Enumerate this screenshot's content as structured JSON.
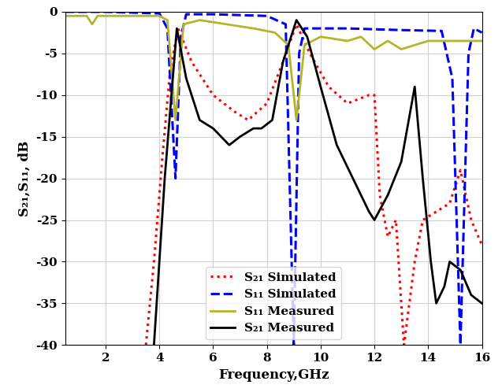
{
  "chart_data": {
    "type": "line",
    "x_label": "Frequency,GHz",
    "y_label": "S₂₁,S₁₁, dB",
    "xlim": [
      0.5,
      16
    ],
    "xticks": [
      2,
      4,
      6,
      8,
      10,
      12,
      14,
      16
    ],
    "ylim": [
      -40,
      0
    ],
    "yticks": [
      -40,
      -35,
      -30,
      -25,
      -20,
      -15,
      -10,
      -5,
      0
    ],
    "grid": true,
    "legend": "lower center",
    "series": [
      {
        "name": "S₂₁ Simulated",
        "color": "#ff0000",
        "line_style": "dotted",
        "x": [
          3.5,
          3.8,
          4.1,
          4.4,
          4.7,
          5.2,
          6.0,
          6.8,
          7.3,
          8.0,
          8.6,
          9.1,
          9.6,
          10.3,
          11.0,
          11.8,
          12.0,
          12.2,
          12.5,
          12.8,
          13.1,
          13.5,
          13.8,
          14.3,
          14.8,
          15.2,
          15.6,
          16.0
        ],
        "values": [
          -40,
          -30,
          -18,
          -7,
          -2,
          -6,
          -10,
          -12,
          -13,
          -11,
          -6,
          -1.5,
          -5,
          -9,
          -11,
          -10,
          -10,
          -22,
          -27,
          -25,
          -40,
          -30,
          -25,
          -24,
          -23,
          -19,
          -25,
          -28
        ]
      },
      {
        "name": "S₁₁ Simulated",
        "color": "#0000ff",
        "line_style": "dashed",
        "x": [
          0.5,
          2.0,
          4.0,
          4.3,
          4.6,
          4.8,
          5.0,
          6.0,
          8.0,
          8.7,
          9.0,
          9.2,
          9.4,
          11.0,
          13.0,
          14.5,
          14.9,
          15.2,
          15.5,
          15.7,
          16.0
        ],
        "values": [
          0,
          0,
          -0.2,
          -2,
          -20,
          -3,
          -0.3,
          -0.3,
          -0.5,
          -1.5,
          -40,
          -5,
          -2,
          -2,
          -2.2,
          -2.3,
          -8,
          -40,
          -5,
          -2,
          -2.5
        ]
      },
      {
        "name": "S₁₁ Measured",
        "color": "#b5b52a",
        "line_style": "solid",
        "x": [
          0.5,
          1.3,
          1.5,
          1.7,
          3.0,
          4.0,
          4.3,
          4.6,
          4.9,
          5.5,
          6.5,
          7.5,
          8.3,
          8.8,
          9.1,
          9.4,
          10.0,
          11.0,
          11.5,
          12.0,
          12.5,
          13.0,
          14.0,
          15.0,
          16.0
        ],
        "values": [
          -0.5,
          -0.5,
          -1.5,
          -0.5,
          -0.5,
          -0.5,
          -1,
          -13,
          -1.5,
          -1,
          -1.5,
          -2,
          -2.5,
          -4,
          -13,
          -4,
          -3,
          -3.5,
          -3,
          -4.5,
          -3.5,
          -4.5,
          -3.5,
          -3.5,
          -3.5
        ]
      },
      {
        "name": "S₂₁ Measured",
        "color": "#000000",
        "line_style": "solid",
        "x": [
          3.8,
          4.2,
          4.65,
          5.0,
          5.5,
          6.0,
          6.6,
          7.0,
          7.5,
          7.8,
          8.2,
          8.6,
          9.1,
          9.5,
          10.0,
          10.6,
          11.2,
          11.8,
          12.0,
          12.5,
          13.0,
          13.5,
          13.8,
          14.1,
          14.3,
          14.6,
          14.8,
          15.2,
          15.6,
          16.0
        ],
        "values": [
          -40,
          -20,
          -2,
          -8,
          -13,
          -14,
          -16,
          -15,
          -14,
          -14,
          -13,
          -6,
          -1,
          -3,
          -9,
          -16,
          -20,
          -24,
          -25,
          -22,
          -18,
          -9,
          -20,
          -30,
          -35,
          -33,
          -30,
          -31,
          -34,
          -35
        ]
      }
    ]
  }
}
